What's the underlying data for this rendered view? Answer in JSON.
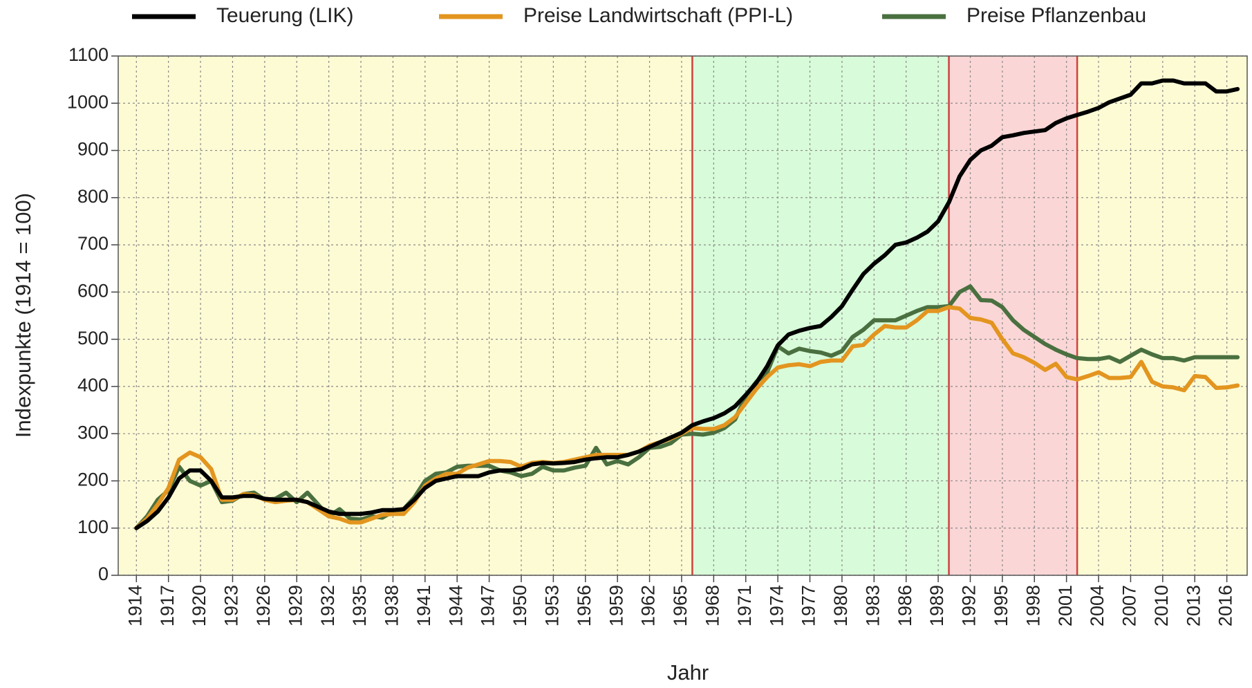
{
  "chart_data": {
    "type": "line",
    "xlabel": "Jahr",
    "ylabel": "Indexpunkte (1914 = 100)",
    "legend": "top",
    "grid": true,
    "xlim": [
      1912.3,
      2017.9
    ],
    "ylim": [
      0,
      1100
    ],
    "yticks": [
      0,
      100,
      200,
      300,
      400,
      500,
      600,
      700,
      800,
      900,
      1000,
      1100
    ],
    "xticks": [
      1914,
      1917,
      1920,
      1923,
      1926,
      1929,
      1932,
      1935,
      1938,
      1941,
      1944,
      1947,
      1950,
      1953,
      1956,
      1959,
      1962,
      1965,
      1968,
      1971,
      1974,
      1977,
      1980,
      1983,
      1986,
      1989,
      1992,
      1995,
      1998,
      2001,
      2004,
      2007,
      2010,
      2013,
      2016
    ],
    "shaded_periods": [
      {
        "from": 1912.3,
        "to": 1966,
        "color": "#fdfbd4"
      },
      {
        "from": 1966,
        "to": 1990,
        "color": "#d8fbd9"
      },
      {
        "from": 1990,
        "to": 2002,
        "color": "#fbd6d6"
      },
      {
        "from": 2002,
        "to": 2017.9,
        "color": "#fdfbd4"
      }
    ],
    "vlines": [
      1966,
      1990,
      2002
    ],
    "vline_color": "#d04040",
    "x": [
      1914,
      1915,
      1916,
      1917,
      1918,
      1919,
      1920,
      1921,
      1922,
      1923,
      1924,
      1925,
      1926,
      1927,
      1928,
      1929,
      1930,
      1931,
      1932,
      1933,
      1934,
      1935,
      1936,
      1937,
      1938,
      1939,
      1940,
      1941,
      1942,
      1943,
      1944,
      1945,
      1946,
      1947,
      1948,
      1949,
      1950,
      1951,
      1952,
      1953,
      1954,
      1955,
      1956,
      1957,
      1958,
      1959,
      1960,
      1961,
      1962,
      1963,
      1964,
      1965,
      1966,
      1967,
      1968,
      1969,
      1970,
      1971,
      1972,
      1973,
      1974,
      1975,
      1976,
      1977,
      1978,
      1979,
      1980,
      1981,
      1982,
      1983,
      1984,
      1985,
      1986,
      1987,
      1988,
      1989,
      1990,
      1991,
      1992,
      1993,
      1994,
      1995,
      1996,
      1997,
      1998,
      1999,
      2000,
      2001,
      2002,
      2003,
      2004,
      2005,
      2006,
      2007,
      2008,
      2009,
      2010,
      2011,
      2012,
      2013,
      2014,
      2015,
      2016,
      2017
    ],
    "series": [
      {
        "name": "Teuerung (LIK)",
        "color": "#000000",
        "values": [
          100,
          115,
          135,
          165,
          205,
          222,
          222,
          200,
          165,
          165,
          168,
          168,
          162,
          160,
          160,
          160,
          155,
          145,
          135,
          130,
          130,
          130,
          133,
          138,
          138,
          140,
          160,
          185,
          200,
          205,
          210,
          210,
          210,
          218,
          222,
          222,
          225,
          235,
          238,
          237,
          238,
          240,
          245,
          248,
          250,
          250,
          255,
          262,
          272,
          282,
          292,
          302,
          318,
          326,
          333,
          343,
          358,
          382,
          408,
          443,
          487,
          510,
          518,
          524,
          528,
          547,
          570,
          605,
          638,
          660,
          678,
          700,
          705,
          715,
          728,
          750,
          790,
          845,
          880,
          900,
          910,
          928,
          932,
          937,
          940,
          943,
          958,
          968,
          975,
          982,
          990,
          1002,
          1010,
          1018,
          1042,
          1042,
          1048,
          1048,
          1042,
          1042,
          1042,
          1025,
          1025,
          1030
        ]
      },
      {
        "name": "Preise Landwirtschaft (PPI-L)",
        "color": "#e3951f",
        "values": [
          100,
          120,
          150,
          185,
          245,
          260,
          250,
          225,
          160,
          160,
          172,
          170,
          160,
          155,
          158,
          160,
          155,
          140,
          125,
          120,
          112,
          112,
          120,
          128,
          130,
          130,
          155,
          190,
          205,
          215,
          215,
          228,
          235,
          242,
          242,
          240,
          230,
          238,
          240,
          238,
          240,
          245,
          250,
          255,
          255,
          255,
          255,
          262,
          275,
          282,
          290,
          300,
          312,
          310,
          310,
          318,
          335,
          365,
          395,
          420,
          440,
          445,
          447,
          443,
          452,
          455,
          455,
          485,
          488,
          510,
          528,
          525,
          525,
          540,
          560,
          560,
          568,
          565,
          545,
          542,
          535,
          500,
          470,
          462,
          450,
          435,
          448,
          420,
          415,
          422,
          430,
          418,
          418,
          420,
          452,
          410,
          400,
          398,
          392,
          422,
          420,
          397,
          398,
          402
        ]
      },
      {
        "name": "Preise Pflanzenbau",
        "color": "#4a7040",
        "values": [
          100,
          125,
          160,
          180,
          230,
          200,
          190,
          200,
          155,
          158,
          172,
          175,
          160,
          162,
          175,
          155,
          175,
          150,
          125,
          140,
          120,
          118,
          125,
          122,
          135,
          140,
          165,
          200,
          215,
          218,
          230,
          232,
          232,
          232,
          222,
          218,
          210,
          215,
          230,
          222,
          222,
          228,
          232,
          270,
          235,
          242,
          235,
          250,
          270,
          272,
          280,
          298,
          300,
          298,
          302,
          312,
          330,
          380,
          410,
          430,
          485,
          470,
          480,
          475,
          472,
          465,
          475,
          505,
          520,
          540,
          540,
          540,
          550,
          560,
          568,
          568,
          570,
          600,
          612,
          583,
          582,
          568,
          540,
          520,
          505,
          490,
          478,
          468,
          460,
          458,
          458,
          462,
          452,
          465,
          478,
          468,
          460,
          460,
          455,
          462,
          462,
          462,
          462,
          462
        ]
      }
    ]
  }
}
